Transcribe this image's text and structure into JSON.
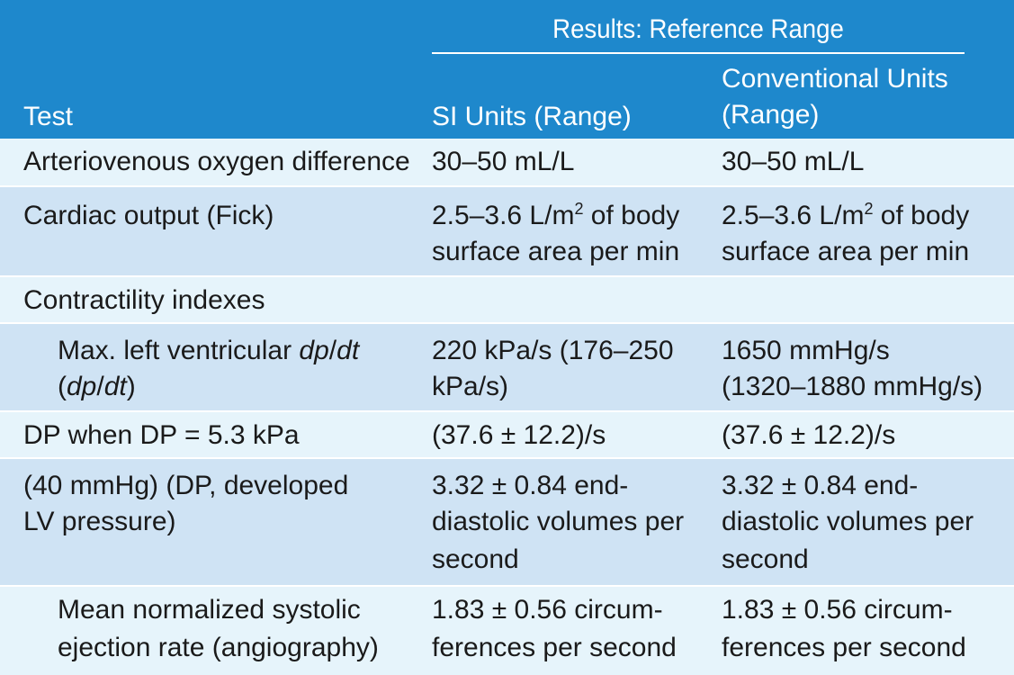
{
  "header": {
    "group_title": "Results: Reference Range",
    "test_label": "Test",
    "si_label": "SI Units (Range)",
    "conv_label_line1": "Conventional Units",
    "conv_label_line2": "(Range)"
  },
  "rows": [
    {
      "test": [
        "Arteriovenous oxygen difference"
      ],
      "si": [
        "30–50 mL/L"
      ],
      "conv": [
        "30–50 mL/L"
      ]
    },
    {
      "test": [
        "Cardiac output (Fick)"
      ],
      "si_line1_a": "2.5–3.6 L/m",
      "si_line1_sup": "2",
      "si_line1_b": " of body",
      "si_line2": "surface area per min",
      "conv_line1_a": "2.5–3.6 L/m",
      "conv_line1_sup": "2",
      "conv_line1_b": " of body",
      "conv_line2": "surface area per min"
    },
    {
      "test": [
        "Contractility indexes"
      ]
    },
    {
      "test_line1_a": "Max. left ventricular ",
      "test_line1_it": "dp",
      "test_line1_slash": "/",
      "test_line1_it2": "dt",
      "test_line2_open": "(",
      "test_line2_it": "dp",
      "test_line2_slash": "/",
      "test_line2_it2": "dt",
      "test_line2_close": ")",
      "si": [
        "220 kPa/s (176–250",
        "kPa/s)"
      ],
      "conv": [
        "1650 mmHg/s",
        "(1320–1880 mmHg/s)"
      ]
    },
    {
      "test": [
        "DP when DP = 5.3 kPa"
      ],
      "si": [
        "(37.6 ± 12.2)/s"
      ],
      "conv": [
        "(37.6 ± 12.2)/s"
      ]
    },
    {
      "test": [
        "(40 mmHg) (DP, developed",
        "LV pressure)"
      ],
      "si": [
        "3.32 ± 0.84 end-",
        "diastolic volumes per",
        "second"
      ],
      "conv": [
        "3.32 ± 0.84 end-",
        "diastolic volumes per",
        "second"
      ]
    },
    {
      "test": [
        "Mean normalized systolic",
        "ejection rate (angiography)"
      ],
      "si": [
        "1.83 ± 0.56 circum-",
        "ferences per second"
      ],
      "conv": [
        "1.83 ± 0.56 circum-",
        "ferences per second"
      ]
    }
  ]
}
